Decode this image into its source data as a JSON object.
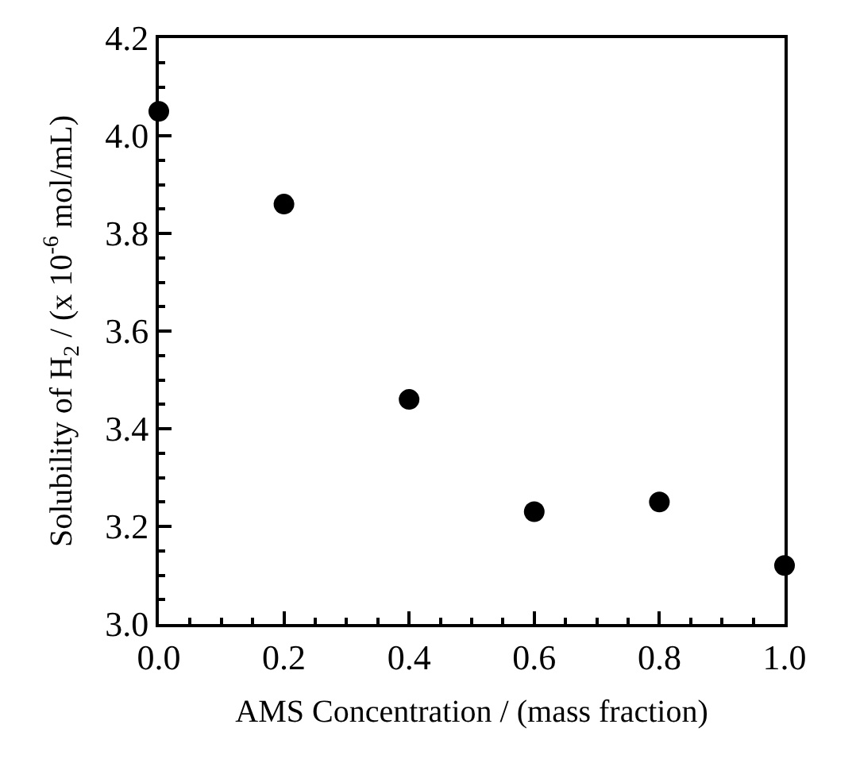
{
  "chart_data": {
    "type": "scatter",
    "xlabel": "AMS Concentration / (mass fraction)",
    "ylabel": "Solubility of H$_{2}$ / (x 10$^{-6}$ mol/mL)",
    "x": [
      0.0,
      0.2,
      0.4,
      0.6,
      0.8,
      1.0
    ],
    "series": [
      {
        "color": "#000000",
        "values": [
          4.05,
          3.86,
          3.46,
          3.23,
          3.25,
          3.12
        ]
      }
    ],
    "xlim": [
      0.0,
      1.0
    ],
    "xticks": [
      {
        "value": 0,
        "label": "0.0"
      },
      0.2,
      0.4,
      0.6,
      0.8,
      {
        "value": 1,
        "label": "1.0"
      }
    ],
    "ylim": [
      3.0,
      4.2
    ],
    "yticks": [
      {
        "value": 3,
        "label": "3.0"
      },
      3.2,
      3.4,
      3.6,
      3.8,
      {
        "value": 4,
        "label": "4.0"
      },
      4.2
    ],
    "marker": "circle"
  }
}
